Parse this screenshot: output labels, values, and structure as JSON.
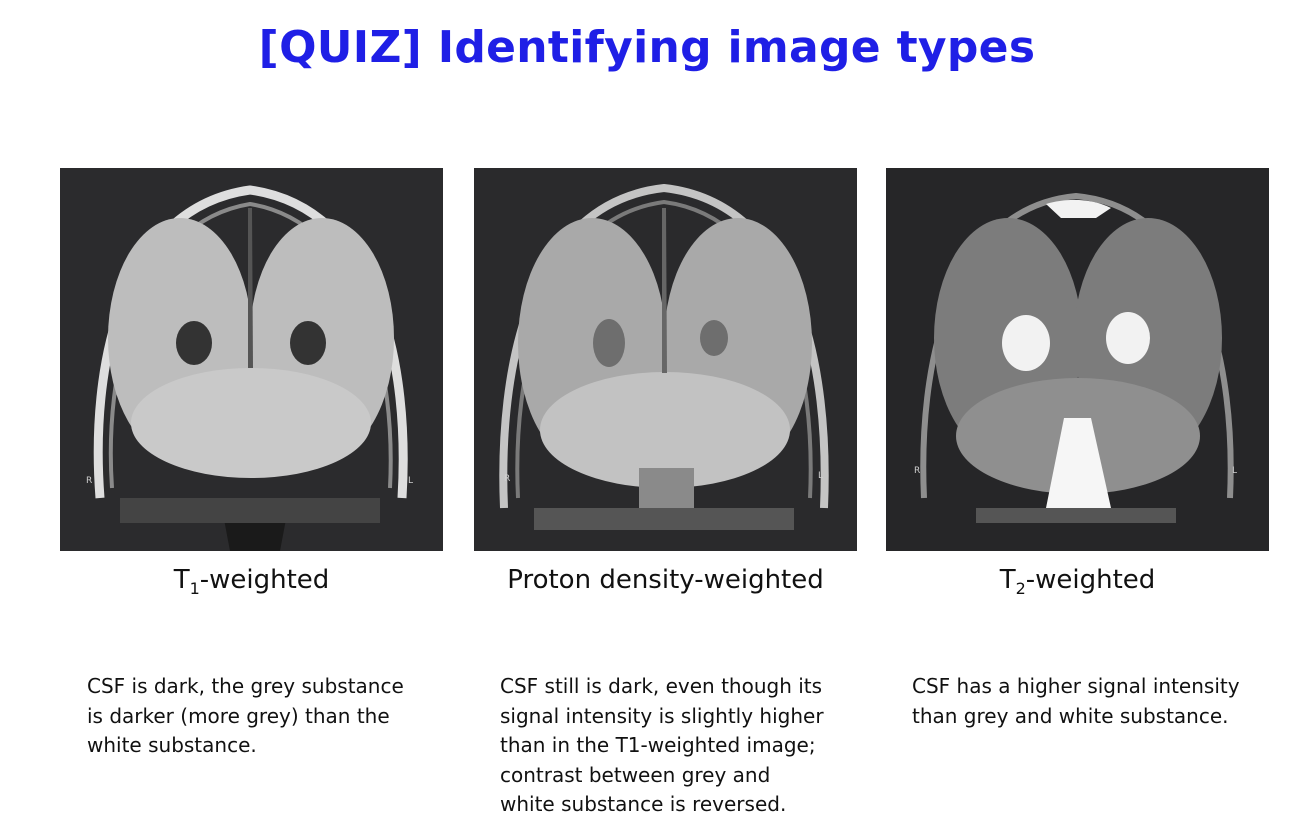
{
  "title": "[QUIZ] Identifying image types",
  "panels": [
    {
      "caption_main": "T",
      "caption_sub": "1",
      "caption_rest": "-weighted",
      "description": "CSF is dark, the grey substance is darker (more grey) than the white substance.",
      "left_marker": "R",
      "right_marker": "L"
    },
    {
      "caption_main": "Proton density-weighted",
      "caption_sub": "",
      "caption_rest": "",
      "description": "CSF still is dark, even though its signal intensity is slightly higher than in the T1-weighted image; contrast between grey and white substance is reversed.",
      "left_marker": "R",
      "right_marker": "L"
    },
    {
      "caption_main": "T",
      "caption_sub": "2",
      "caption_rest": "-weighted",
      "description": "CSF has a higher signal intensity than grey and white substance.",
      "left_marker": "R",
      "right_marker": "L"
    }
  ],
  "colors": {
    "title": "#1f1fe6",
    "image_background": "#2a2a2c"
  }
}
